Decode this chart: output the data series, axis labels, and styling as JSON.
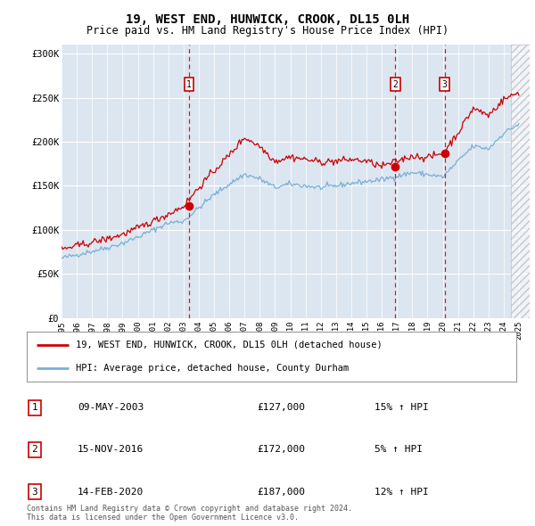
{
  "title": "19, WEST END, HUNWICK, CROOK, DL15 0LH",
  "subtitle": "Price paid vs. HM Land Registry's House Price Index (HPI)",
  "ylim": [
    0,
    310000
  ],
  "yticks": [
    0,
    50000,
    100000,
    150000,
    200000,
    250000,
    300000
  ],
  "ytick_labels": [
    "£0",
    "£50K",
    "£100K",
    "£150K",
    "£200K",
    "£250K",
    "£300K"
  ],
  "xlim_start": 1995.0,
  "xlim_end": 2025.7,
  "plot_bg_color": "#dce6f1",
  "grid_color": "#ffffff",
  "sale_dates": [
    2003.36,
    2016.88,
    2020.12
  ],
  "sale_prices": [
    127000,
    172000,
    187000
  ],
  "sale_labels": [
    "1",
    "2",
    "3"
  ],
  "sale_table": [
    [
      "1",
      "09-MAY-2003",
      "£127,000",
      "15% ↑ HPI"
    ],
    [
      "2",
      "15-NOV-2016",
      "£172,000",
      "5% ↑ HPI"
    ],
    [
      "3",
      "14-FEB-2020",
      "£187,000",
      "12% ↑ HPI"
    ]
  ],
  "legend_line1": "19, WEST END, HUNWICK, CROOK, DL15 0LH (detached house)",
  "legend_line2": "HPI: Average price, detached house, County Durham",
  "footer": "Contains HM Land Registry data © Crown copyright and database right 2024.\nThis data is licensed under the Open Government Licence v3.0.",
  "title_fontsize": 10,
  "subtitle_fontsize": 8.5,
  "red_line_color": "#cc0000",
  "blue_line_color": "#7bafd4",
  "marker_color": "#cc0000",
  "dashed_line_color": "#cc0000",
  "hpi_years": [
    1995,
    1996,
    1997,
    1998,
    1999,
    2000,
    2001,
    2002,
    2003,
    2004,
    2005,
    2006,
    2007,
    2008,
    2009,
    2010,
    2011,
    2012,
    2013,
    2014,
    2015,
    2016,
    2017,
    2018,
    2019,
    2020,
    2021,
    2022,
    2023,
    2024,
    2025
  ],
  "hpi_vals": [
    68000,
    72000,
    76000,
    80000,
    85000,
    92000,
    100000,
    108000,
    110000,
    125000,
    140000,
    152000,
    163000,
    158000,
    148000,
    152000,
    150000,
    148000,
    150000,
    153000,
    155000,
    157000,
    161000,
    165000,
    163000,
    160000,
    178000,
    195000,
    192000,
    210000,
    220000
  ],
  "red_years": [
    1995,
    1996,
    1997,
    1998,
    1999,
    2000,
    2001,
    2002,
    2003,
    2004,
    2005,
    2006,
    2007,
    2008,
    2009,
    2010,
    2011,
    2012,
    2013,
    2014,
    2015,
    2016,
    2017,
    2018,
    2019,
    2020,
    2021,
    2022,
    2023,
    2024,
    2025
  ],
  "red_vals": [
    78000,
    82000,
    86000,
    90000,
    95000,
    102000,
    110000,
    118000,
    127000,
    148000,
    167000,
    185000,
    205000,
    195000,
    178000,
    183000,
    180000,
    177000,
    178000,
    180000,
    178000,
    172000,
    178000,
    184000,
    182000,
    187000,
    210000,
    238000,
    230000,
    248000,
    256000
  ],
  "hatch_start": 2024.5
}
